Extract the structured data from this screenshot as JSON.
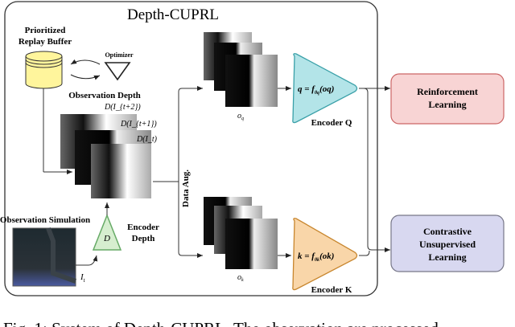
{
  "title": "Depth-CUPRL",
  "replay_buffer": "Prioritized\nReplay Buffer",
  "replay_buffer_lines": [
    "Prioritized",
    "Replay Buffer"
  ],
  "optimizer": "Optimizer",
  "observation_depth": "Observation Depth",
  "depth_labels": [
    "D(I_{t+2})",
    "D(I_{t+1})",
    "D(I_t)"
  ],
  "depth_label_parts": [
    {
      "base": "D(I",
      "sub": "t+2",
      "end": ")"
    },
    {
      "base": "D(I",
      "sub": "t+1",
      "end": ")"
    },
    {
      "base": "D(I",
      "sub": "t",
      "end": ")"
    }
  ],
  "observation_simulation": "Observation Simulation",
  "input_label": {
    "base": "I",
    "sub": "t"
  },
  "encoder_depth": {
    "symbol": "D",
    "lines": [
      "Encoder",
      "Depth"
    ]
  },
  "data_aug": "Data Aug.",
  "o_q": {
    "base": "o",
    "sub": "q"
  },
  "o_k": {
    "base": "o",
    "sub": "k"
  },
  "encoder_q": {
    "formula": "q = f_{θ_q}(o_q)",
    "pre": "q = f",
    "sub": "θq",
    "post": "(oq)",
    "label": "Encoder Q",
    "color": "#b3e4e8"
  },
  "encoder_k": {
    "formula": "k = f_{θ_k}(o_k)",
    "pre": "k = f",
    "sub": "θk",
    "post": "(ok)",
    "label": "Encoder K",
    "color": "#f9d6a9"
  },
  "rl_box": {
    "lines": [
      "Reinforcement",
      "Learning"
    ],
    "color": "#f8d4d4"
  },
  "cl_box": {
    "lines": [
      "Contrastive",
      "Unsupervised",
      "Learning"
    ],
    "color": "#d8d8f0"
  },
  "caption": "Fig. 1: System of Depth-CUPRL. The observation are processed"
}
